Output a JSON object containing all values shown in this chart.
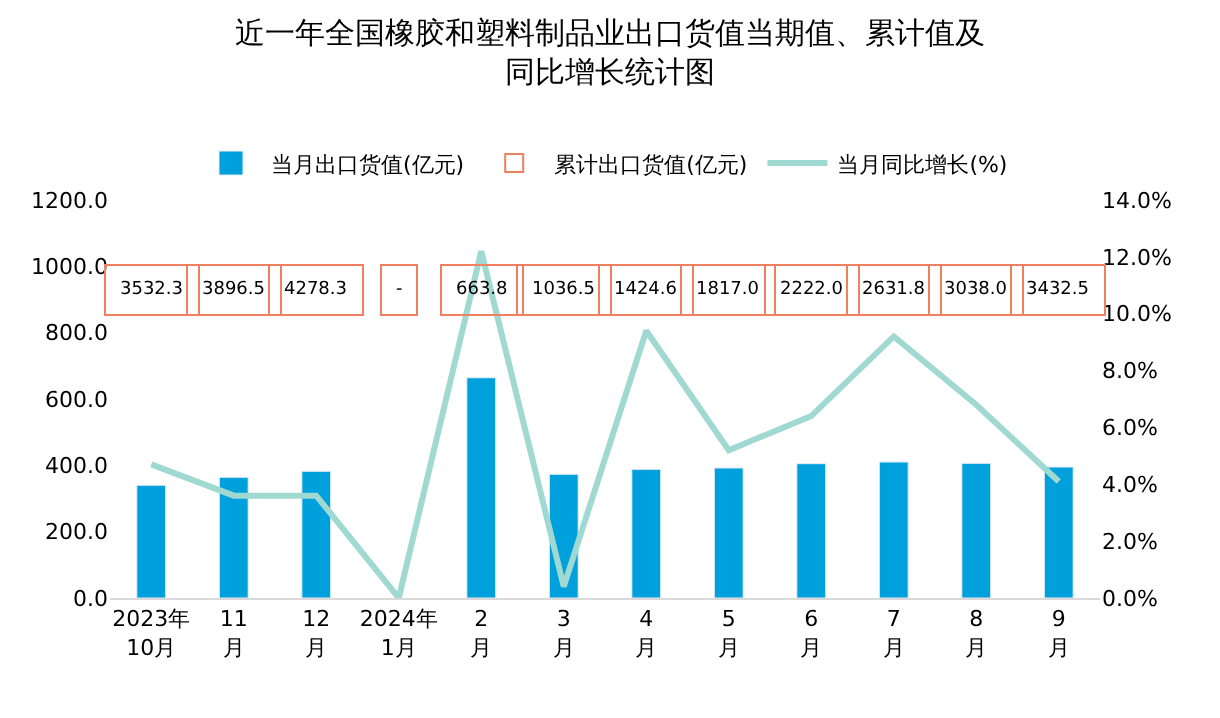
{
  "chart_data": {
    "type": "bar",
    "title": "近一年全国橡胶和塑料制品业出口货值当期值、累计值及同比增长统计图",
    "categories": [
      "2023年\n10月",
      "11\n月",
      "12\n月",
      "2024年\n1月",
      "2\n月",
      "3\n月",
      "4\n月",
      "5\n月",
      "6\n月",
      "7\n月",
      "8\n月",
      "9\n月"
    ],
    "series": [
      {
        "name": "当月出口货值(亿元)",
        "color": "#00a0dc",
        "values": [
          340,
          364,
          382,
          null,
          664,
          373,
          388,
          392,
          405,
          410,
          406,
          395
        ]
      },
      {
        "name": "累计出口货值(亿元)",
        "type": "scatter",
        "color": "#f08060",
        "values": [
          null,
          null,
          null,
          null,
          null,
          null,
          null,
          null,
          null,
          null,
          null,
          null
        ]
      },
      {
        "name": "当月同比增长(%)",
        "type": "line",
        "axis": "y2",
        "color": "#a0d8d2",
        "values": [
          4.7,
          3.6,
          3.6,
          0.0,
          12.2,
          0.4,
          9.4,
          5.2,
          6.4,
          9.2,
          6.8,
          4.1
        ]
      }
    ],
    "annotations": [
      "3532.3",
      "3896.5",
      "4278.3",
      "-",
      "663.8",
      "1036.5",
      "1424.6",
      "1817.0",
      "2222.0",
      "2631.8",
      "3038.0",
      "3432.5"
    ],
    "ylim": [
      0,
      1200
    ],
    "yticks": [
      {
        "value": 0,
        "label": "0.0"
      },
      {
        "value": 200,
        "label": "200.0"
      },
      {
        "value": 400,
        "label": "400.0"
      },
      {
        "value": 600,
        "label": "600.0"
      },
      {
        "value": 800,
        "label": "800.0"
      },
      {
        "value": 1000,
        "label": "1000.0"
      },
      {
        "value": 1200,
        "label": "1200.0"
      }
    ],
    "y2lim": [
      0,
      14
    ],
    "y2ticks": [
      {
        "value": 0,
        "label": "0.0%"
      },
      {
        "value": 2,
        "label": "2.0%"
      },
      {
        "value": 4,
        "label": "4.0%"
      },
      {
        "value": 6,
        "label": "6.0%"
      },
      {
        "value": 8,
        "label": "8.0%"
      },
      {
        "value": 10,
        "label": "10.0%"
      },
      {
        "value": 12,
        "label": "12.0%"
      },
      {
        "value": 14,
        "label": "14.0%"
      }
    ],
    "grid": false,
    "legend": "top"
  }
}
